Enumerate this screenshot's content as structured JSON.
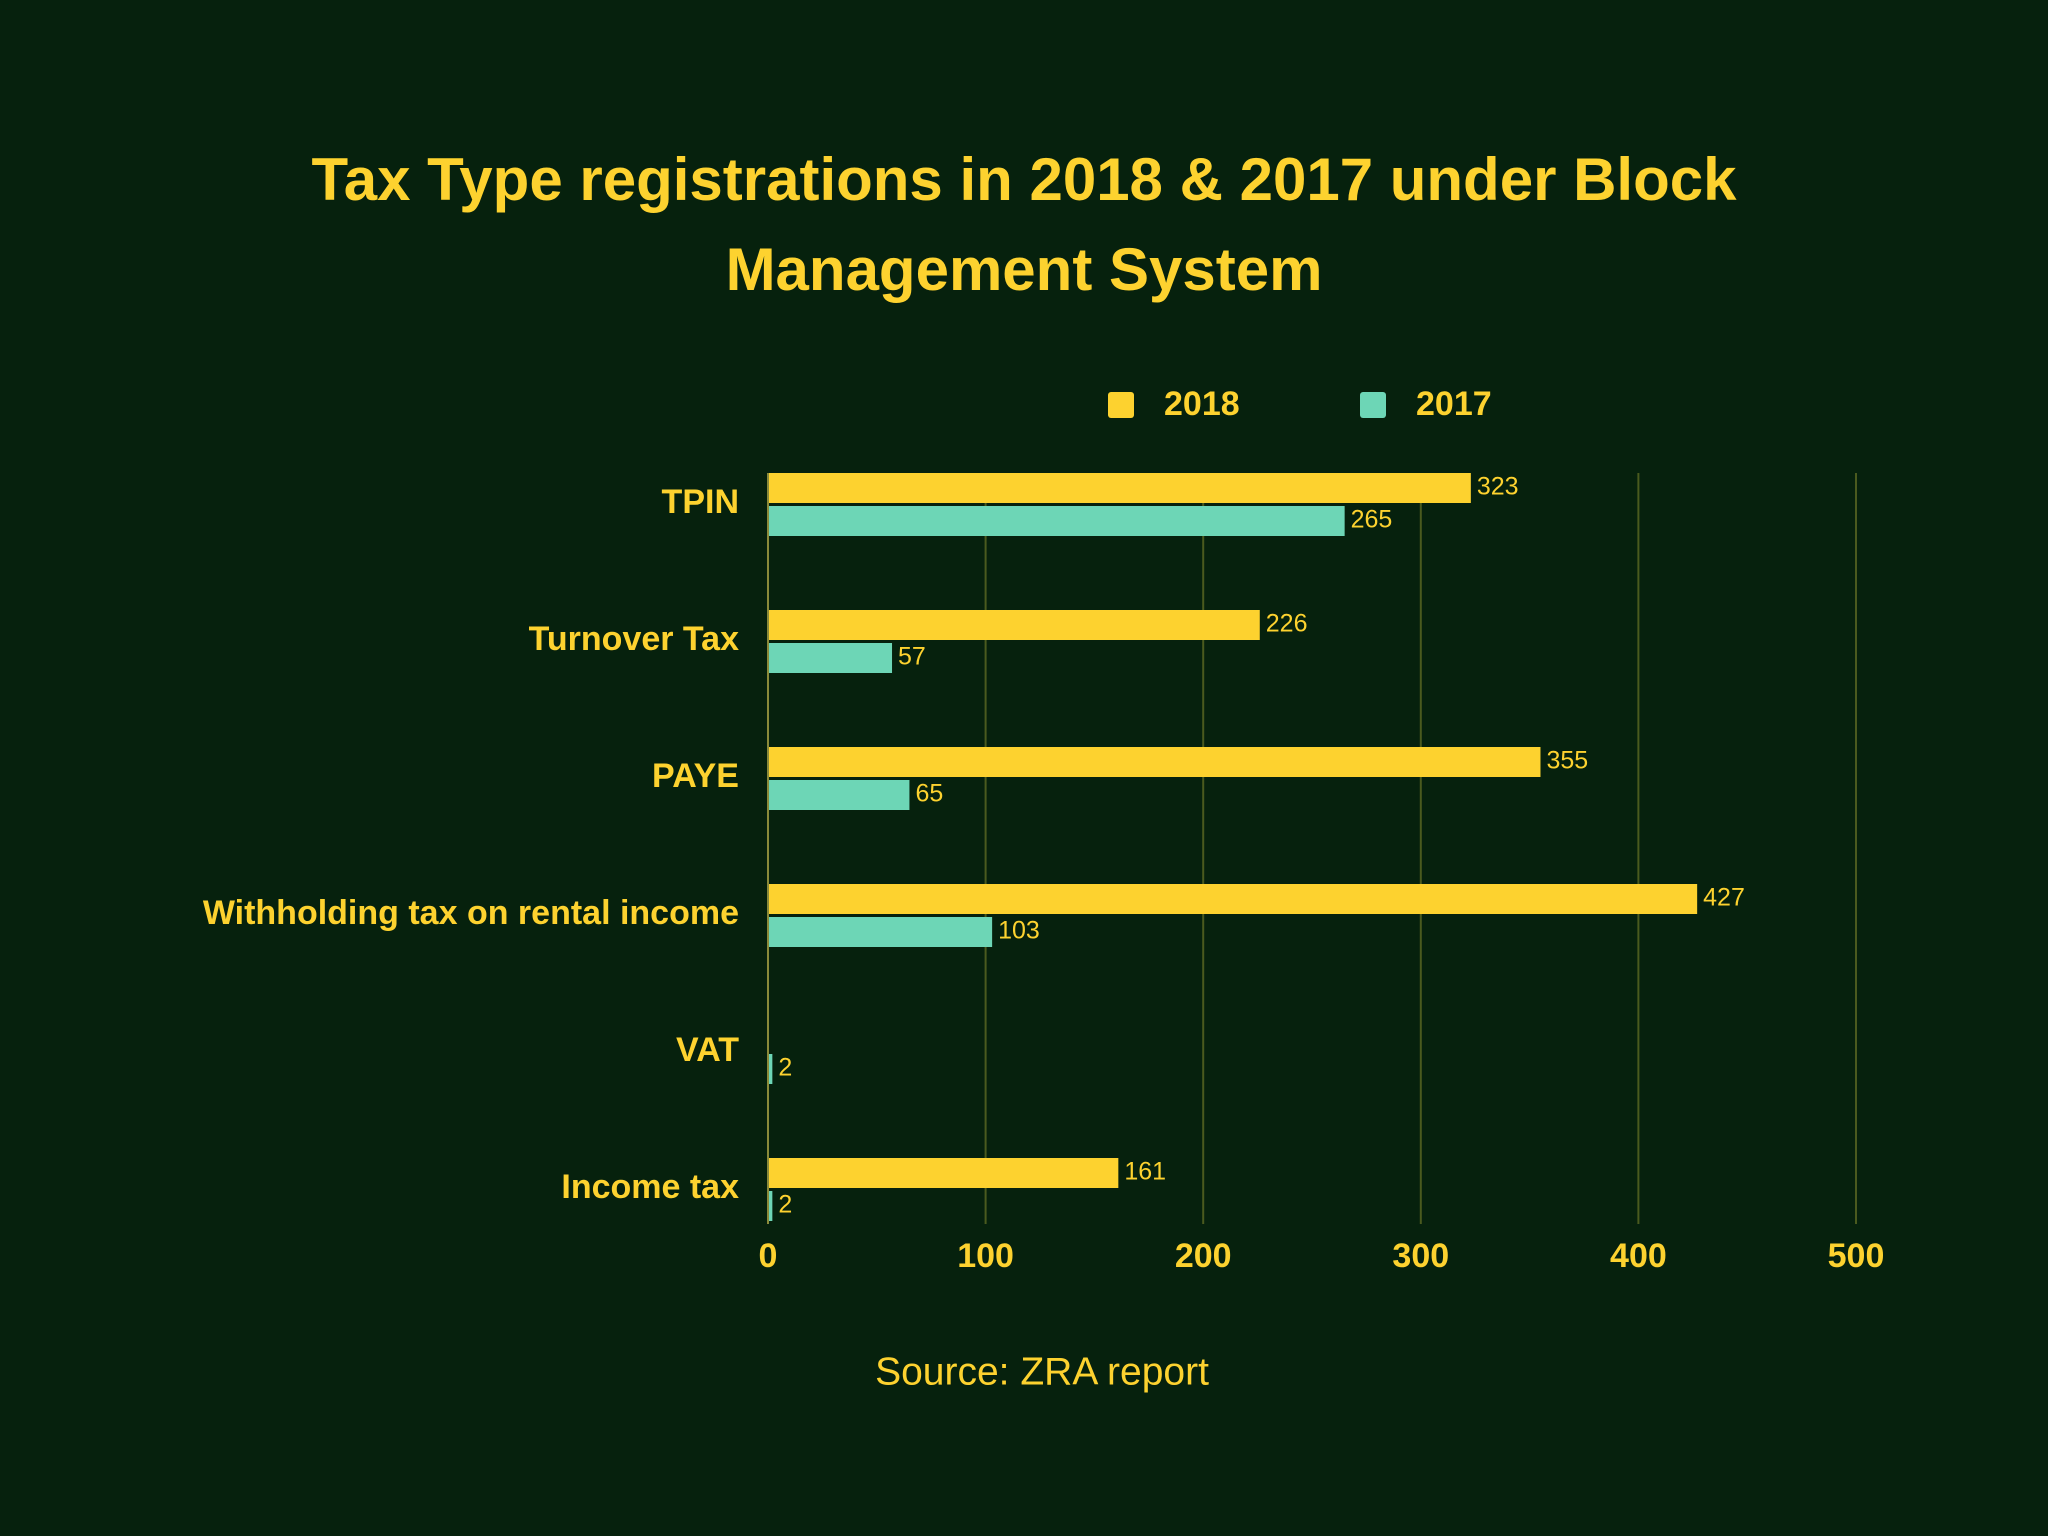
{
  "chart_data": {
    "type": "hbar",
    "title": "Tax Type registrations in 2018 & 2017 under Block Management System",
    "categories": [
      "TPIN",
      "Turnover Tax",
      "PAYE",
      "Withholding tax on rental income",
      "VAT",
      "Income tax"
    ],
    "series": [
      {
        "name": "2018",
        "color": "#fdd22f",
        "values": [
          323,
          226,
          355,
          427,
          null,
          161
        ]
      },
      {
        "name": "2017",
        "color": "#6dd6b6",
        "values": [
          265,
          57,
          65,
          103,
          2,
          2
        ]
      }
    ],
    "xlim": [
      0,
      500
    ],
    "xticks": [
      0,
      100,
      200,
      300,
      400,
      500
    ],
    "grid": true,
    "legend": "top",
    "source": "Source: ZRA report"
  }
}
